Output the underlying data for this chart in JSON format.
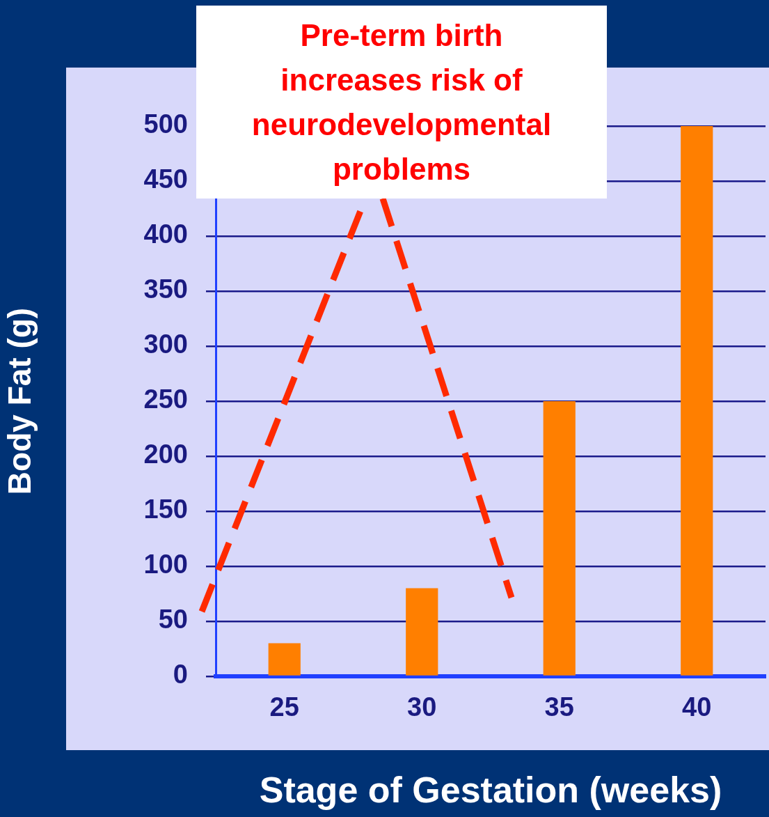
{
  "chart_data": {
    "type": "bar",
    "annotations": [
      "Pre-term birth increases risk of neurodevelopmental problems"
    ],
    "xlabel": "Stage of Gestation (weeks)",
    "ylabel": "Body Fat (g)",
    "categories": [
      "25",
      "30",
      "35",
      "40"
    ],
    "values": [
      30,
      80,
      250,
      500
    ],
    "color": "#ff7f00",
    "ylim": [
      0,
      500
    ],
    "yticks": [
      0,
      50,
      100,
      150,
      200,
      250,
      300,
      350,
      400,
      450,
      500
    ],
    "grid": "y"
  }
}
